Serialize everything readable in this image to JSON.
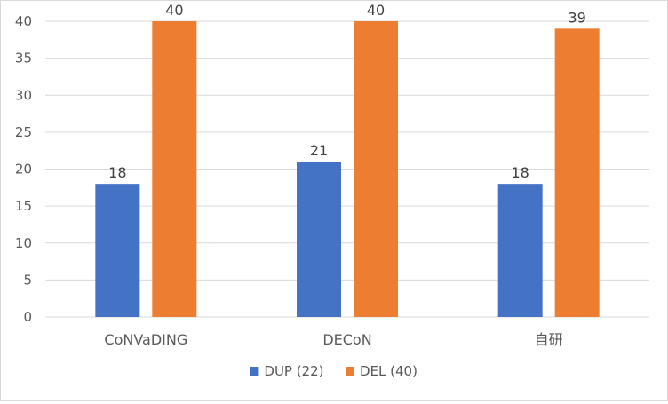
{
  "chart_data": {
    "type": "bar",
    "title": "",
    "xlabel": "",
    "ylabel": "",
    "categories": [
      "CoNVaDING",
      "DECoN",
      "自研"
    ],
    "series": [
      {
        "name": "DUP (22)",
        "color": "#4472C4",
        "values": [
          18,
          21,
          18
        ]
      },
      {
        "name": "DEL (40)",
        "color": "#ED7D31",
        "values": [
          40,
          40,
          39
        ]
      }
    ],
    "ylim": [
      0,
      40
    ],
    "yticks": [
      0,
      5,
      10,
      15,
      20,
      25,
      30,
      35,
      40
    ],
    "grid": true,
    "legend_position": "bottom-center",
    "data_labels": true
  }
}
